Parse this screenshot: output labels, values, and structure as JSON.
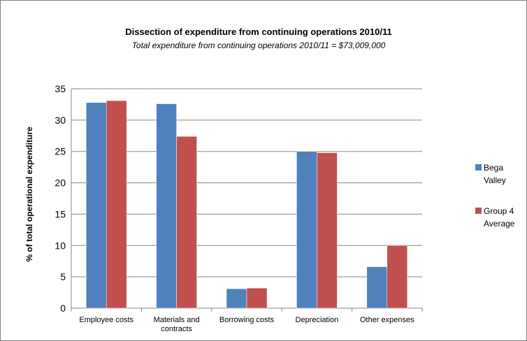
{
  "chart_data": {
    "type": "bar",
    "title": "Dissection of expenditure from continuing operations 2010/11",
    "subtitle": "Total expenditure from continuing operations 2010/11 =  $73,009,000",
    "xlabel": "",
    "ylabel": "% of total operational expenditure",
    "categories": [
      [
        "Employee costs"
      ],
      [
        "Materials and",
        "contracts"
      ],
      [
        "Borrowing costs"
      ],
      [
        "Depreciation"
      ],
      [
        "Other expenses"
      ]
    ],
    "series": [
      {
        "name_lines": [
          "Bega",
          "Valley"
        ],
        "color": "#4F81BD",
        "values": [
          32.8,
          32.6,
          3.1,
          25.0,
          6.6
        ]
      },
      {
        "name_lines": [
          "Group 4",
          "Average"
        ],
        "color": "#C0504D",
        "values": [
          33.1,
          27.4,
          3.2,
          24.8,
          10.0
        ]
      }
    ],
    "ylim": [
      0,
      35
    ],
    "yticks": [
      0,
      5,
      10,
      15,
      20,
      25,
      30,
      35
    ],
    "grid": true,
    "legend": "right"
  }
}
